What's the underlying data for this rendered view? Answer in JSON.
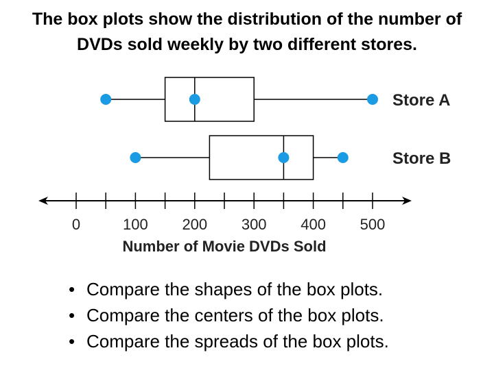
{
  "title": {
    "line1": "The box plots show the distribution of the number of",
    "line2": "DVDs sold weekly by two different stores."
  },
  "chart_data": {
    "type": "boxplot",
    "orientation": "horizontal",
    "xlabel": "Number of Movie DVDs Sold",
    "xlim": [
      0,
      500
    ],
    "ticks": [
      0,
      50,
      100,
      150,
      200,
      250,
      300,
      350,
      400,
      450,
      500
    ],
    "tick_labels": [
      "0",
      "100",
      "200",
      "300",
      "400",
      "500"
    ],
    "tick_label_values": [
      0,
      100,
      200,
      300,
      400,
      500
    ],
    "series": [
      {
        "name": "Store A",
        "min": 50,
        "q1": 150,
        "median": 200,
        "q3": 300,
        "max": 500
      },
      {
        "name": "Store B",
        "min": 100,
        "q1": 225,
        "median": 350,
        "q3": 400,
        "max": 450
      }
    ],
    "colors": {
      "point": "#1b9be3",
      "line": "#000000"
    },
    "axis_arrows": "both"
  },
  "bullets": [
    "Compare the shapes of the box plots.",
    "Compare the centers of the box plots.",
    "Compare the spreads of the box plots."
  ]
}
